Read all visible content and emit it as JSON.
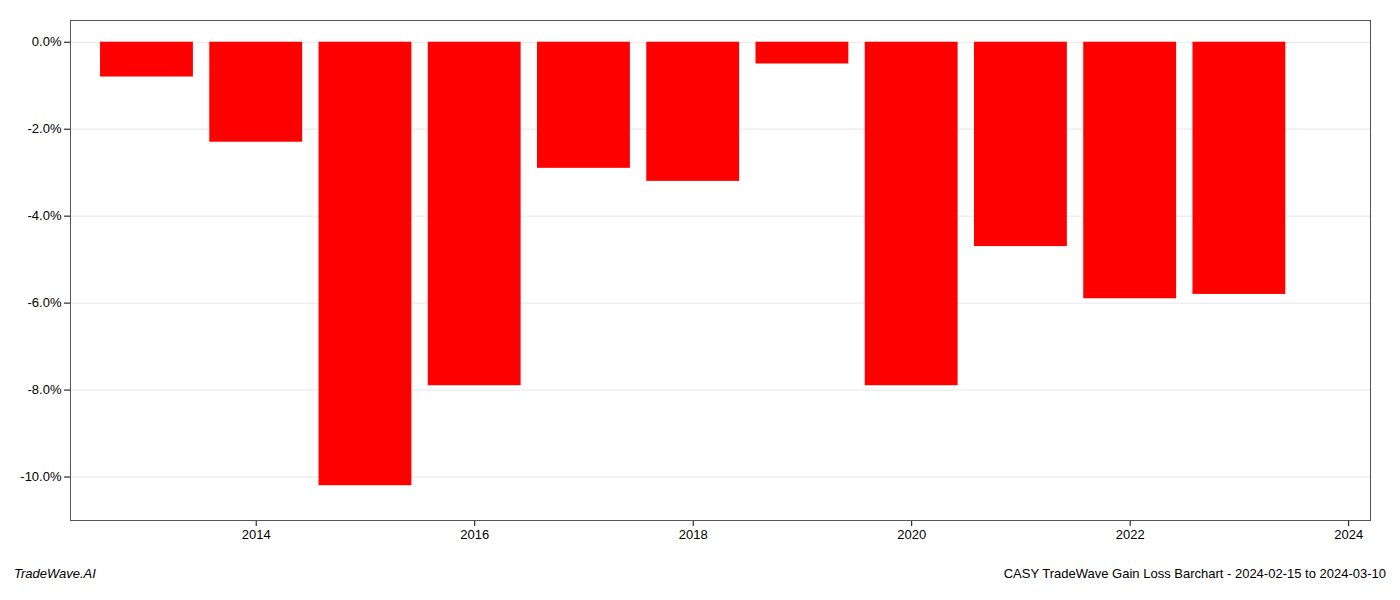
{
  "chart_data": {
    "type": "bar",
    "x": [
      2013,
      2014,
      2015,
      2016,
      2017,
      2018,
      2019,
      2020,
      2021,
      2022,
      2023
    ],
    "values": [
      -0.008,
      -0.023,
      -0.102,
      -0.079,
      -0.029,
      -0.032,
      -0.005,
      -0.079,
      -0.047,
      -0.059,
      -0.058
    ],
    "color": "#ff0000",
    "xlim": [
      2012.3,
      2024.2
    ],
    "xticks": [
      2014,
      2016,
      2018,
      2020,
      2022,
      2024
    ],
    "ylim": [
      -0.11,
      0.005
    ],
    "yticks": [
      {
        "value": 0.0,
        "label": "0.0%"
      },
      {
        "value": -0.02,
        "label": "-2.0%"
      },
      {
        "value": -0.04,
        "label": "-4.0%"
      },
      {
        "value": -0.06,
        "label": "-6.0%"
      },
      {
        "value": -0.08,
        "label": "-8.0%"
      },
      {
        "value": -0.1,
        "label": "-10.0%"
      }
    ],
    "grid": true,
    "annotations": [
      "TradeWave.AI",
      "CASY TradeWave Gain Loss Barchart - 2024-02-15 to 2024-03-10"
    ]
  }
}
